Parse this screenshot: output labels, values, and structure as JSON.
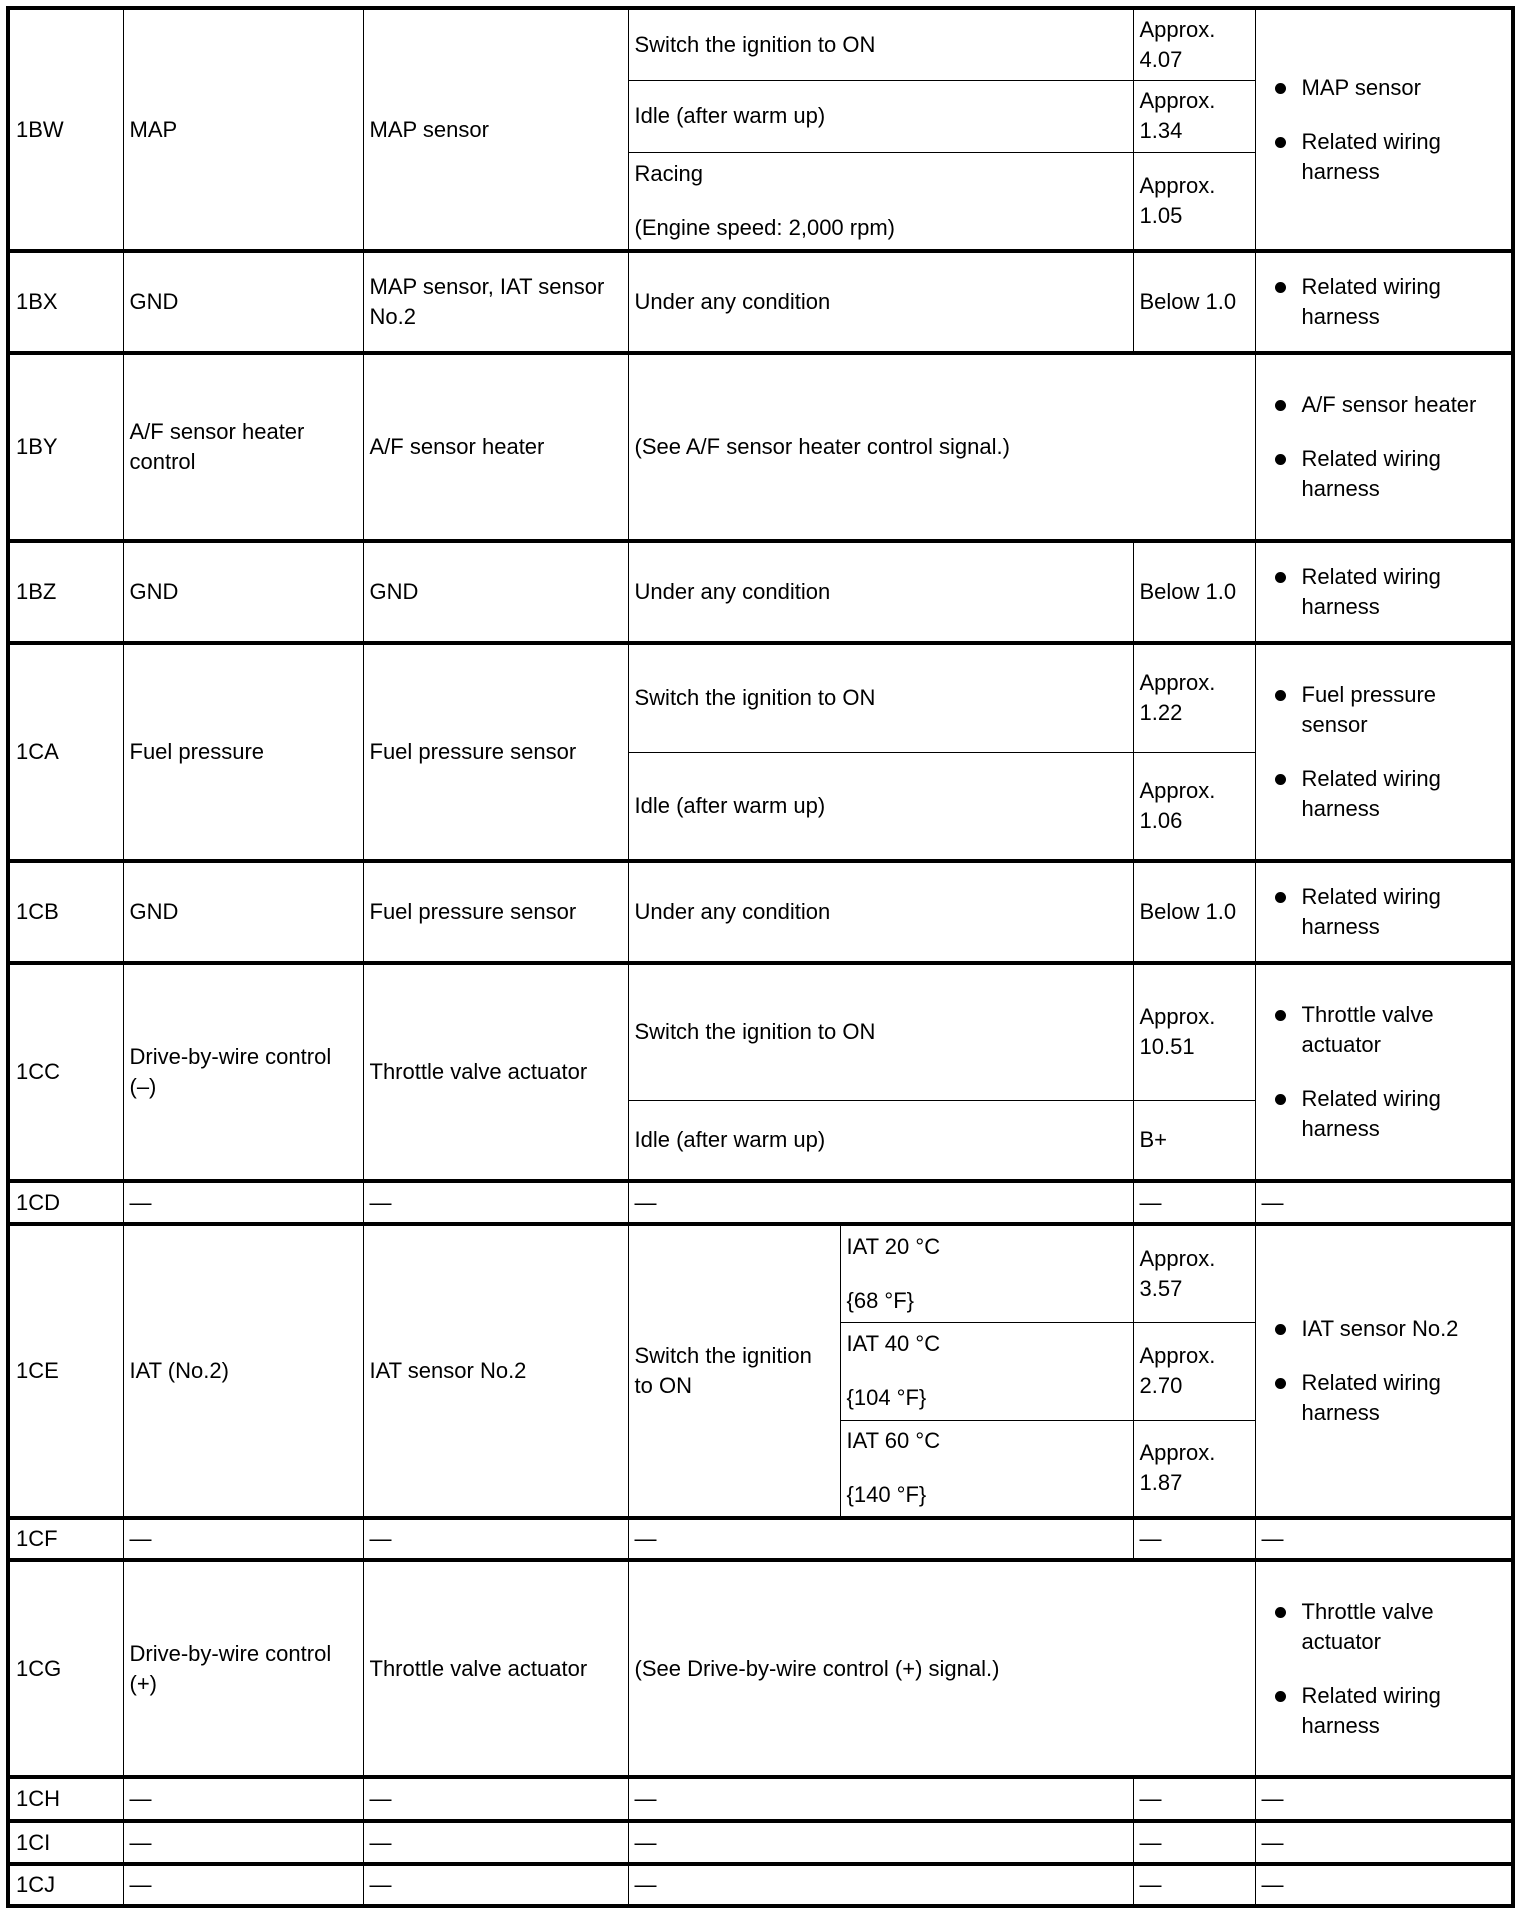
{
  "rows": [
    {
      "terminal": "1BW",
      "name": [
        "MAP"
      ],
      "connected": [
        "MAP sensor"
      ],
      "h": [
        72,
        72,
        99
      ],
      "conditions": [
        {
          "condition": [
            "Switch the ignition to ON"
          ],
          "voltage": [
            "Approx.",
            "4.07"
          ]
        },
        {
          "condition": [
            "Idle (after warm up)"
          ],
          "voltage": [
            "Approx.",
            "1.34"
          ]
        },
        {
          "condition": [
            "Racing",
            "(Engine speed: 2,000 rpm)"
          ],
          "voltage": [
            "Approx.",
            "1.05"
          ]
        }
      ],
      "action": [
        "MAP sensor",
        "Related wiring harness"
      ]
    },
    {
      "terminal": "1BX",
      "name": [
        "GND"
      ],
      "connected": [
        "MAP sensor, IAT sensor No.2"
      ],
      "h": [
        102
      ],
      "conditions": [
        {
          "condition": [
            "Under any condition"
          ],
          "voltage": [
            "Below 1.0"
          ]
        }
      ],
      "action": [
        "Related wiring harness"
      ]
    },
    {
      "terminal": "1BY",
      "name": [
        "A/F sensor heater control"
      ],
      "connected": [
        "A/F sensor heater"
      ],
      "h": [
        188
      ],
      "note": "(See A/F sensor heater control signal.)",
      "action": [
        "A/F sensor heater",
        "Related wiring harness"
      ]
    },
    {
      "terminal": "1BZ",
      "name": [
        "GND"
      ],
      "connected": [
        "GND"
      ],
      "h": [
        102
      ],
      "conditions": [
        {
          "condition": [
            "Under any condition"
          ],
          "voltage": [
            "Below 1.0"
          ]
        }
      ],
      "action": [
        "Related wiring harness"
      ]
    },
    {
      "terminal": "1CA",
      "name": [
        "Fuel pressure"
      ],
      "connected": [
        "Fuel pressure sensor"
      ],
      "h": [
        109,
        109
      ],
      "conditions": [
        {
          "condition": [
            "Switch the ignition to ON"
          ],
          "voltage": [
            "Approx.",
            "1.22"
          ]
        },
        {
          "condition": [
            "Idle (after warm up)"
          ],
          "voltage": [
            "Approx.",
            "1.06"
          ]
        }
      ],
      "action": [
        "Fuel pressure sensor",
        "Related wiring harness"
      ]
    },
    {
      "terminal": "1CB",
      "name": [
        "GND"
      ],
      "connected": [
        "Fuel pressure sensor"
      ],
      "h": [
        102
      ],
      "conditions": [
        {
          "condition": [
            "Under any condition"
          ],
          "voltage": [
            "Below 1.0"
          ]
        }
      ],
      "action": [
        "Related wiring harness"
      ]
    },
    {
      "terminal": "1CC",
      "name": [
        "Drive-by-wire control (–)"
      ],
      "connected": [
        "Throttle valve actuator"
      ],
      "h": [
        137,
        81
      ],
      "conditions": [
        {
          "condition": [
            "Switch the ignition to ON"
          ],
          "voltage": [
            "Approx.",
            "10.51"
          ]
        },
        {
          "condition": [
            "Idle (after warm up)"
          ],
          "voltage": [
            "B+"
          ]
        }
      ],
      "action": [
        "Throttle valve actuator",
        "Related wiring harness"
      ]
    },
    {
      "terminal": "1CD",
      "dash": "—",
      "h": [
        43
      ]
    },
    {
      "terminal": "1CE",
      "name": [
        "IAT (No.2)"
      ],
      "connected": [
        "IAT sensor No.2"
      ],
      "h": [
        98,
        98,
        98
      ],
      "main_condition": [
        "Switch the ignition to ON"
      ],
      "conditions": [
        {
          "condition": [
            "IAT 20 °C",
            "{68 °F}"
          ],
          "voltage": [
            "Approx.",
            "3.57"
          ]
        },
        {
          "condition": [
            "IAT 40 °C",
            "{104 °F}"
          ],
          "voltage": [
            "Approx.",
            "2.70"
          ]
        },
        {
          "condition": [
            "IAT 60 °C",
            "{140 °F}"
          ],
          "voltage": [
            "Approx.",
            "1.87"
          ]
        }
      ],
      "action": [
        "IAT sensor No.2",
        "Related wiring harness"
      ]
    },
    {
      "terminal": "1CF",
      "dash": "—",
      "h": [
        42
      ]
    },
    {
      "terminal": "1CG",
      "name": [
        "Drive-by-wire control (+)"
      ],
      "connected": [
        "Throttle valve actuator"
      ],
      "h": [
        217
      ],
      "note": "(See Drive-by-wire control (+) signal.)",
      "action": [
        "Throttle valve actuator",
        "Related wiring harness"
      ]
    },
    {
      "terminal": "1CH",
      "dash": "—",
      "h": [
        44
      ]
    },
    {
      "terminal": "1CI",
      "dash": "—",
      "h": [
        43
      ]
    },
    {
      "terminal": "1CJ",
      "dash": "—",
      "h": [
        42
      ]
    }
  ]
}
